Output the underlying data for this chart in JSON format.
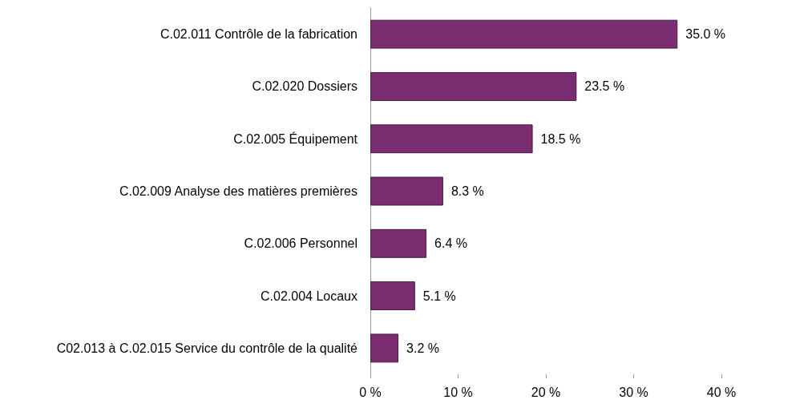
{
  "chart_data": {
    "type": "bar",
    "orientation": "horizontal",
    "categories": [
      "C.02.011 Contrôle de la fabrication",
      "C.02.020 Dossiers",
      "C.02.005 Équipement",
      "C.02.009 Analyse des matières premières",
      "C.02.006 Personnel",
      "C.02.004 Locaux",
      "C02.013 à C.02.015 Service du contrôle de la qualité"
    ],
    "values": [
      35.0,
      23.5,
      18.5,
      8.3,
      6.4,
      5.1,
      3.2
    ],
    "value_labels": [
      "35.0 %",
      "23.5 %",
      "18.5 %",
      "8.3 %",
      "6.4 %",
      "5.1 %",
      "3.2 %"
    ],
    "color": "#7b2d72",
    "xlim": [
      0,
      40
    ],
    "xticks": [
      {
        "value": 0,
        "label": "0 %"
      },
      {
        "value": 10,
        "label": "10 %"
      },
      {
        "value": 20,
        "label": "20 %"
      },
      {
        "value": 30,
        "label": "30 %"
      },
      {
        "value": 40,
        "label": "40 %"
      }
    ],
    "grid": false
  }
}
